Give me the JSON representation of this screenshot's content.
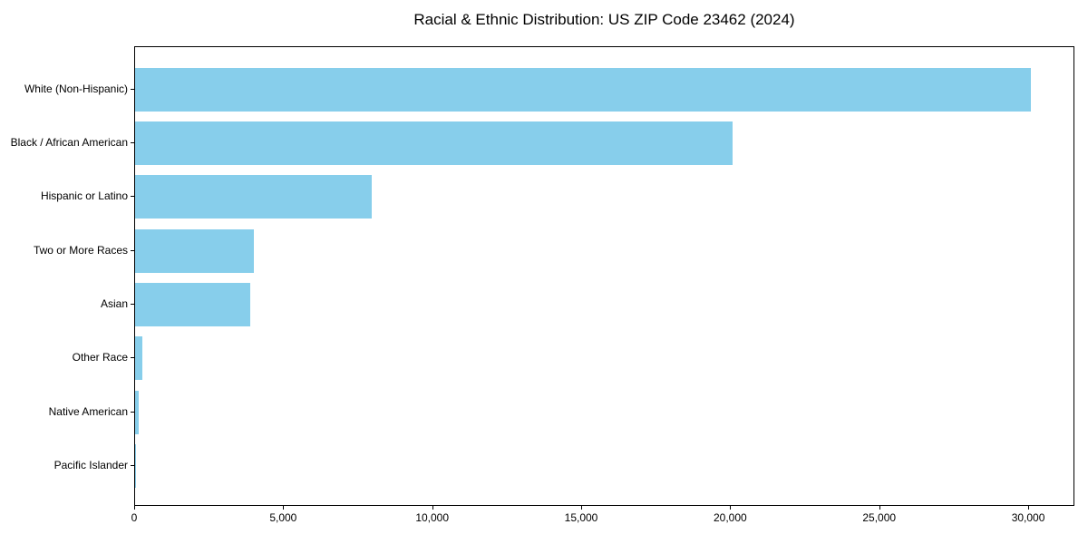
{
  "chart_data": {
    "type": "bar",
    "orientation": "horizontal",
    "title": "Racial & Ethnic Distribution: US ZIP Code 23462 (2024)",
    "categories": [
      "White (Non-Hispanic)",
      "Black / African American",
      "Hispanic or Latino",
      "Two or More Races",
      "Asian",
      "Other Race",
      "Native American",
      "Pacific Islander"
    ],
    "values": [
      30050,
      20050,
      7950,
      4000,
      3860,
      240,
      120,
      40
    ],
    "xlabel": "",
    "ylabel": "",
    "xlim": [
      0,
      31550
    ],
    "xticks": [
      0,
      5000,
      10000,
      15000,
      20000,
      25000,
      30000
    ],
    "xtick_labels": [
      "0",
      "5,000",
      "10,000",
      "15,000",
      "20,000",
      "25,000",
      "30,000"
    ],
    "grid": false,
    "legend": null,
    "bar_color": "#87CEEB",
    "axis_color": "#000000",
    "background_color": "#ffffff"
  }
}
